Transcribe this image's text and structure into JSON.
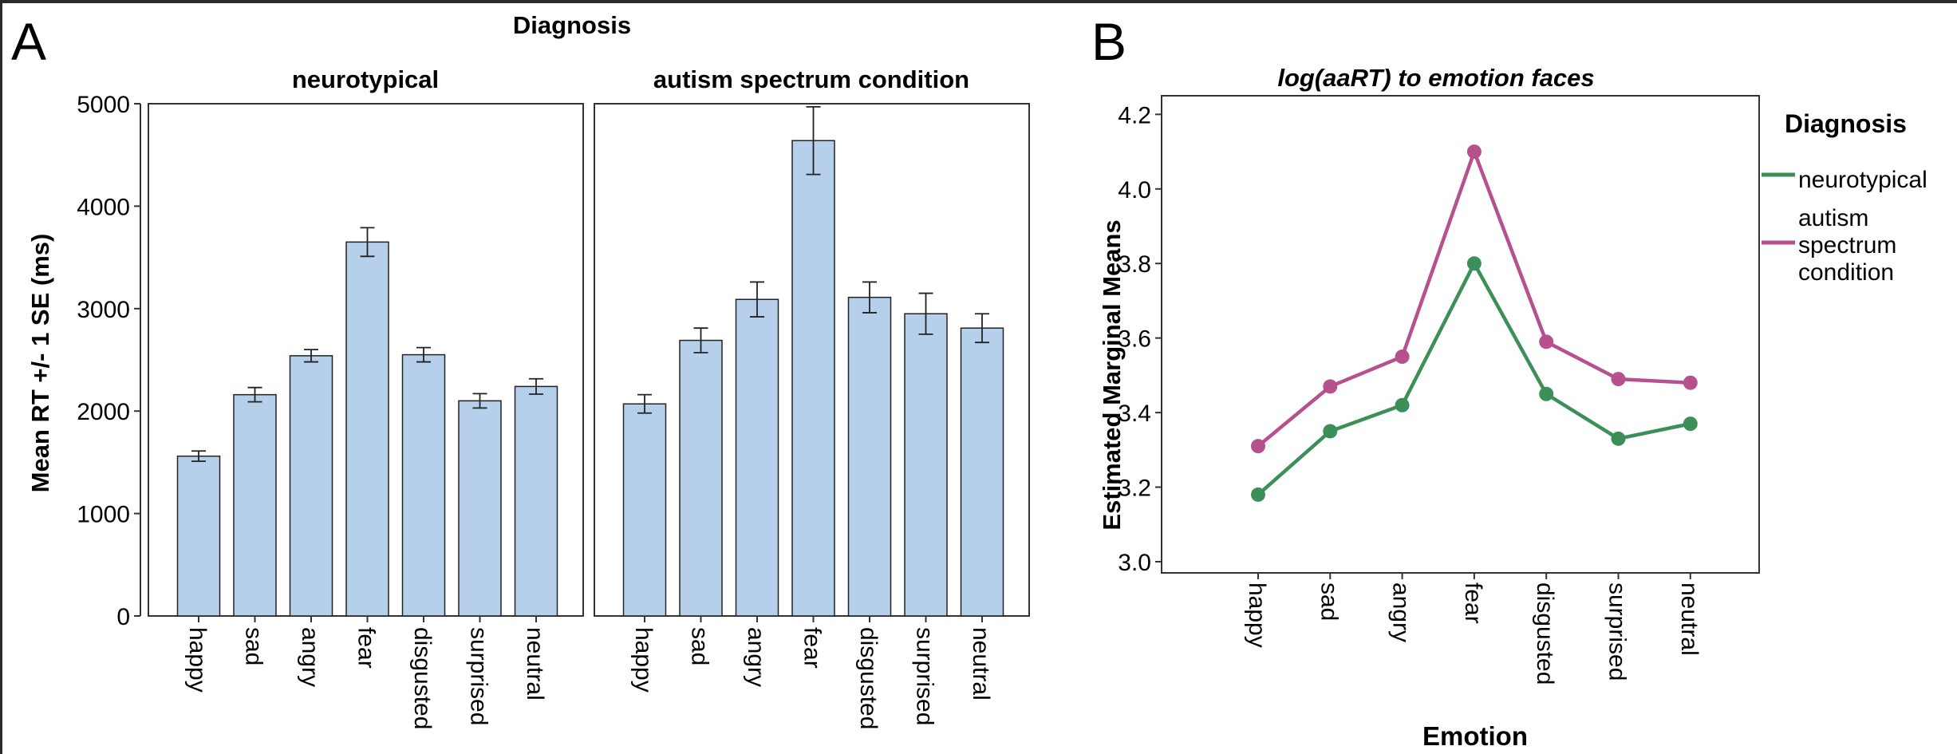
{
  "panel_a": {
    "label": "A"
  },
  "panel_b": {
    "label": "B"
  },
  "chart_data": [
    {
      "type": "bar",
      "title": "Diagnosis",
      "ylabel": "Mean RT +/- 1 SE (ms)",
      "ylim": [
        0,
        5000
      ],
      "yticks": [
        0,
        1000,
        2000,
        3000,
        4000,
        5000
      ],
      "categories": [
        "happy",
        "sad",
        "angry",
        "fear",
        "disgusted",
        "surprised",
        "neutral"
      ],
      "series": [
        {
          "name": "neurotypical",
          "values": [
            1560,
            2160,
            2540,
            3650,
            2550,
            2100,
            2240
          ],
          "se": [
            50,
            70,
            60,
            140,
            70,
            70,
            75
          ]
        },
        {
          "name": "autism spectrum condition",
          "values": [
            2070,
            2690,
            3090,
            4640,
            3110,
            2950,
            2810
          ],
          "se": [
            90,
            120,
            170,
            330,
            150,
            200,
            140
          ]
        }
      ],
      "bar_color": "#b6cfeb",
      "grid": false
    },
    {
      "type": "line",
      "title": "log(aaRT) to emotion faces",
      "xlabel": "Emotion",
      "ylabel": "Estimated Marginal Means",
      "ylim": [
        2.97,
        4.25
      ],
      "yticks": [
        "3.0",
        "3.2",
        "3.4",
        "3.6",
        "3.8",
        "4.0",
        "4.2"
      ],
      "categories": [
        "happy",
        "sad",
        "angry",
        "fear",
        "disgusted",
        "surprised",
        "neutral"
      ],
      "legend_title": "Diagnosis",
      "legend_position": "right",
      "series": [
        {
          "name": "neurotypical",
          "color": "#3d8f5a",
          "values": [
            3.18,
            3.35,
            3.42,
            3.8,
            3.45,
            3.33,
            3.37
          ]
        },
        {
          "name": "autism spectrum condition",
          "label_lines": [
            "autism",
            "spectrum",
            "condition"
          ],
          "color": "#b5528e",
          "values": [
            3.31,
            3.47,
            3.55,
            4.1,
            3.59,
            3.49,
            3.48
          ]
        }
      ],
      "grid": false
    }
  ]
}
